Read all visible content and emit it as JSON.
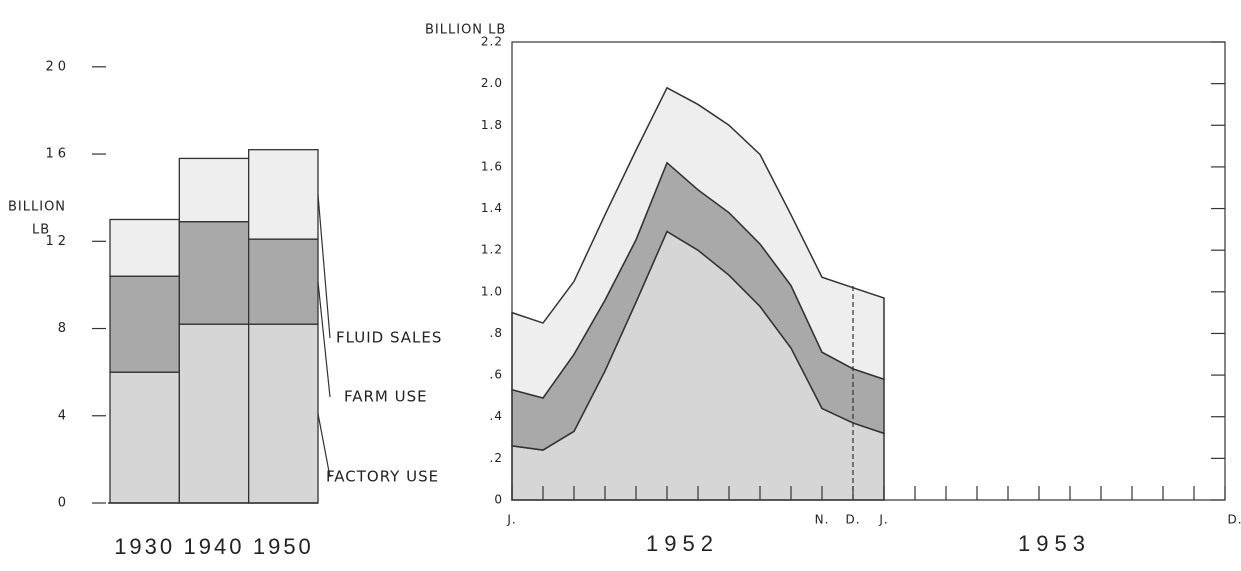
{
  "chart_data": [
    {
      "type": "bar",
      "stacked": true,
      "ylabel": [
        "BILLION",
        "LB"
      ],
      "categories": [
        "1930",
        "1940",
        "1950"
      ],
      "series": [
        {
          "name": "FACTORY USE",
          "color": "#d6d6d6",
          "values": [
            6.0,
            8.2,
            8.2
          ]
        },
        {
          "name": "FARM USE",
          "color": "#a9a9a9",
          "values": [
            4.4,
            4.7,
            3.9
          ]
        },
        {
          "name": "FLUID SALES",
          "color": "#eeeeee",
          "values": [
            2.6,
            2.9,
            4.1
          ]
        }
      ],
      "ylim": [
        0,
        21
      ],
      "yticks": [
        0,
        4,
        8,
        12,
        16,
        20
      ]
    },
    {
      "type": "area",
      "stacked": true,
      "ylabel": "BILLION LB",
      "categories": [
        "J.",
        null,
        null,
        null,
        null,
        null,
        null,
        null,
        null,
        null,
        "N.",
        "D.",
        "J.",
        null,
        null,
        null,
        null,
        null,
        null,
        null,
        null,
        null,
        null,
        "D."
      ],
      "year_labels": [
        "1952",
        "1953"
      ],
      "series": [
        {
          "name": "FACTORY USE",
          "color": "#d6d6d6",
          "values": [
            0.26,
            0.24,
            0.33,
            0.62,
            0.95,
            1.29,
            1.2,
            1.08,
            0.93,
            0.73,
            0.44,
            0.37,
            0.32,
            null,
            null,
            null,
            null,
            null,
            null,
            null,
            null,
            null,
            null,
            null
          ]
        },
        {
          "name": "FARM USE",
          "color": "#a9a9a9",
          "values": [
            0.27,
            0.25,
            0.37,
            0.34,
            0.3,
            0.33,
            0.29,
            0.3,
            0.3,
            0.3,
            0.27,
            0.26,
            0.26,
            null,
            null,
            null,
            null,
            null,
            null,
            null,
            null,
            null,
            null,
            null
          ]
        },
        {
          "name": "FLUID SALES",
          "color": "#eeeeee",
          "values": [
            0.37,
            0.36,
            0.35,
            0.41,
            0.43,
            0.36,
            0.41,
            0.42,
            0.43,
            0.34,
            0.36,
            0.39,
            0.39,
            null,
            null,
            null,
            null,
            null,
            null,
            null,
            null,
            null,
            null,
            null
          ]
        }
      ],
      "ylim": [
        0,
        2.2
      ],
      "yticks": [
        0,
        {
          "value": 0.2,
          "label": ".2"
        },
        {
          "value": 0.4,
          "label": ".4"
        },
        {
          "value": 0.6,
          "label": ".6"
        },
        {
          "value": 0.8,
          "label": ".8"
        },
        {
          "value": 1.0,
          "label": "1.0"
        },
        1.2,
        1.4,
        1.6,
        1.8,
        {
          "value": 2.0,
          "label": "2.0"
        },
        2.2
      ]
    }
  ]
}
